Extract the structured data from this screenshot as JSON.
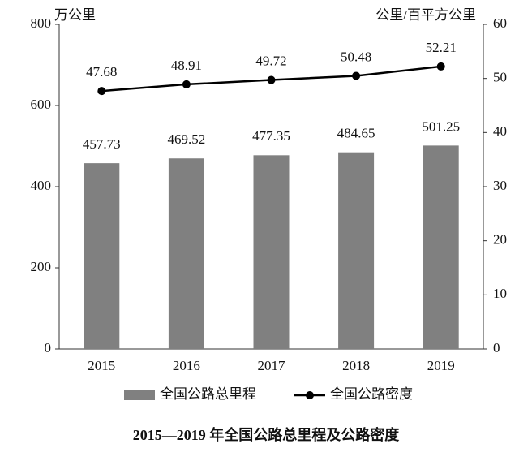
{
  "chart_data": {
    "type": "combo",
    "title": "2015—2019 年全国公路总里程及公路密度",
    "y_label": "万公里",
    "y2_label": "公里/百平方公里",
    "categories": [
      "2015",
      "2016",
      "2017",
      "2018",
      "2019"
    ],
    "series": [
      {
        "name": "全国公路总里程",
        "type": "bar",
        "color": "#808080",
        "values": [
          457.73,
          469.52,
          477.35,
          484.65,
          501.25
        ]
      },
      {
        "name": "全国公路密度",
        "type": "line",
        "axis": "y2",
        "color": "#000000",
        "values": [
          47.68,
          48.91,
          49.72,
          50.48,
          52.21
        ]
      }
    ],
    "ylim": [
      0,
      800
    ],
    "yticks": [
      0,
      200,
      400,
      600,
      800
    ],
    "y2lim": [
      0,
      60
    ],
    "y2ticks": [
      0,
      10,
      20,
      30,
      40,
      50,
      60
    ],
    "grid": false,
    "legend": "bottom"
  }
}
